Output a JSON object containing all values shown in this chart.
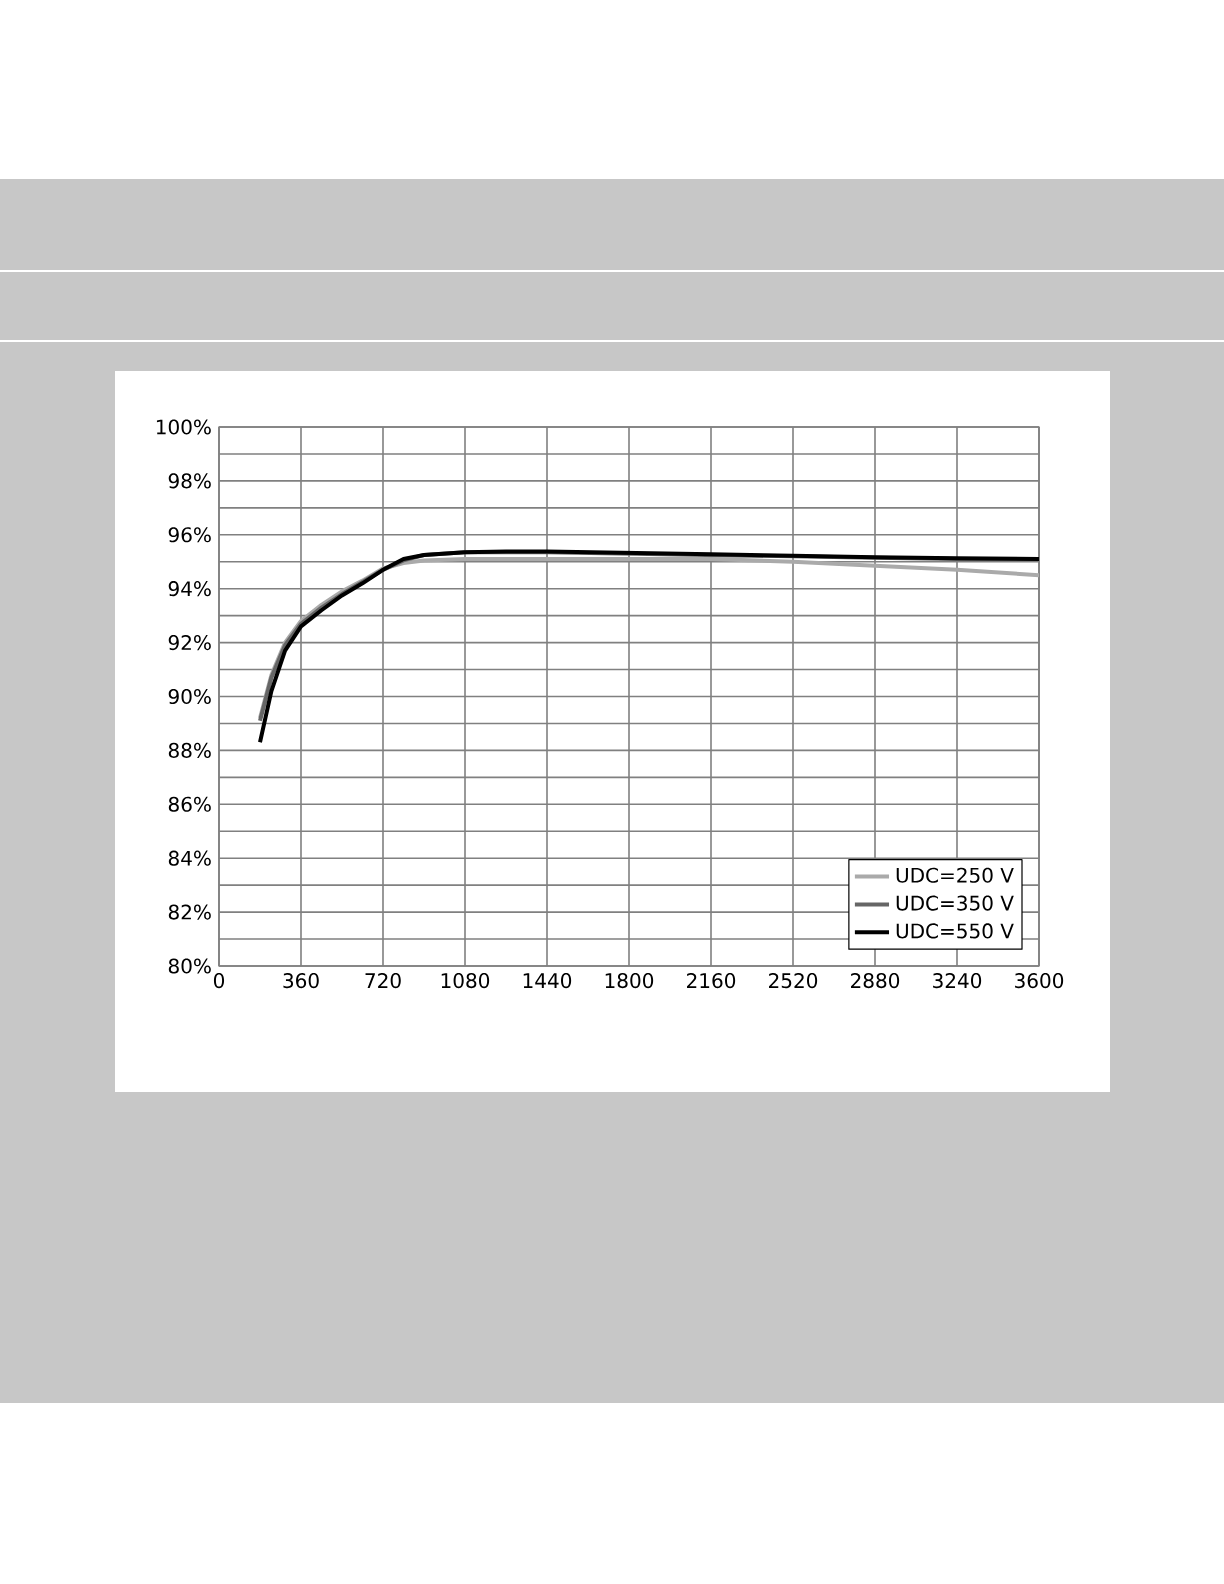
{
  "chart_data": {
    "type": "line",
    "x": [
      180,
      230,
      290,
      360,
      450,
      540,
      630,
      720,
      810,
      900,
      1080,
      1260,
      1440,
      1800,
      2160,
      2520,
      2880,
      3240,
      3600
    ],
    "series": [
      {
        "name": "UDC=250 V",
        "color": "#aaaaaa",
        "values": [
          89.2,
          90.8,
          92.0,
          92.8,
          93.4,
          93.9,
          94.3,
          94.75,
          94.95,
          95.05,
          95.1,
          95.1,
          95.1,
          95.1,
          95.1,
          95.0,
          94.85,
          94.7,
          94.5
        ]
      },
      {
        "name": "UDC=350 V",
        "color": "#666666",
        "values": [
          89.1,
          90.7,
          91.9,
          92.7,
          93.3,
          93.8,
          94.25,
          94.7,
          95.05,
          95.25,
          95.35,
          95.35,
          95.35,
          95.3,
          95.25,
          95.2,
          95.15,
          95.1,
          95.1
        ]
      },
      {
        "name": "UDC=550 V",
        "color": "#000000",
        "values": [
          88.3,
          90.2,
          91.7,
          92.6,
          93.2,
          93.75,
          94.2,
          94.7,
          95.1,
          95.25,
          95.35,
          95.38,
          95.38,
          95.33,
          95.28,
          95.22,
          95.17,
          95.13,
          95.1
        ]
      }
    ],
    "xlim": [
      0,
      3600
    ],
    "xticks": [
      0,
      360,
      720,
      1080,
      1440,
      1800,
      2160,
      2520,
      2880,
      3240,
      3600
    ],
    "ylim": [
      80,
      100
    ],
    "yticks": [
      {
        "value": 80,
        "label": "80%"
      },
      {
        "value": 81,
        "label": null
      },
      {
        "value": 82,
        "label": "82%"
      },
      {
        "value": 83,
        "label": null
      },
      {
        "value": 84,
        "label": "84%"
      },
      {
        "value": 85,
        "label": null
      },
      {
        "value": 86,
        "label": "86%"
      },
      {
        "value": 87,
        "label": null
      },
      {
        "value": 88,
        "label": "88%"
      },
      {
        "value": 89,
        "label": null
      },
      {
        "value": 90,
        "label": "90%"
      },
      {
        "value": 91,
        "label": null
      },
      {
        "value": 92,
        "label": "92%"
      },
      {
        "value": 93,
        "label": null
      },
      {
        "value": 94,
        "label": "94%"
      },
      {
        "value": 95,
        "label": null
      },
      {
        "value": 96,
        "label": "96%"
      },
      {
        "value": 97,
        "label": null
      },
      {
        "value": 98,
        "label": "98%"
      },
      {
        "value": 99,
        "label": null
      },
      {
        "value": 100,
        "label": "100%"
      }
    ],
    "grid": true,
    "legend": "bottom right",
    "marker": "none",
    "line_style": "solid"
  }
}
